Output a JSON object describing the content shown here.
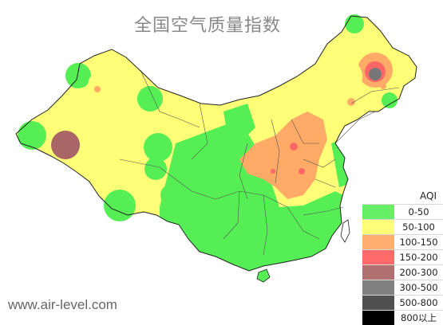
{
  "title": "全国空气质量指数",
  "credit": "www.air-level.com",
  "colors": {
    "ocean": "#ffffff",
    "border": "#222222",
    "province": "#555555",
    "green": "#55ee55",
    "yellow": "#ffff77",
    "orange": "#ffaa66",
    "red": "#ff6666",
    "brown": "#aa6666",
    "gray": "#777777"
  },
  "legend": {
    "title": "AQI",
    "items": [
      {
        "label": "0-50",
        "color": "#66ee66"
      },
      {
        "label": "50-100",
        "color": "#ffff77"
      },
      {
        "label": "100-150",
        "color": "#ffb070"
      },
      {
        "label": "150-200",
        "color": "#ff6a6a"
      },
      {
        "label": "200-300",
        "color": "#b07070"
      },
      {
        "label": "300-500",
        "color": "#808080"
      },
      {
        "label": "500-800",
        "color": "#505050"
      },
      {
        "label": "800以上",
        "color": "#000000"
      }
    ]
  }
}
